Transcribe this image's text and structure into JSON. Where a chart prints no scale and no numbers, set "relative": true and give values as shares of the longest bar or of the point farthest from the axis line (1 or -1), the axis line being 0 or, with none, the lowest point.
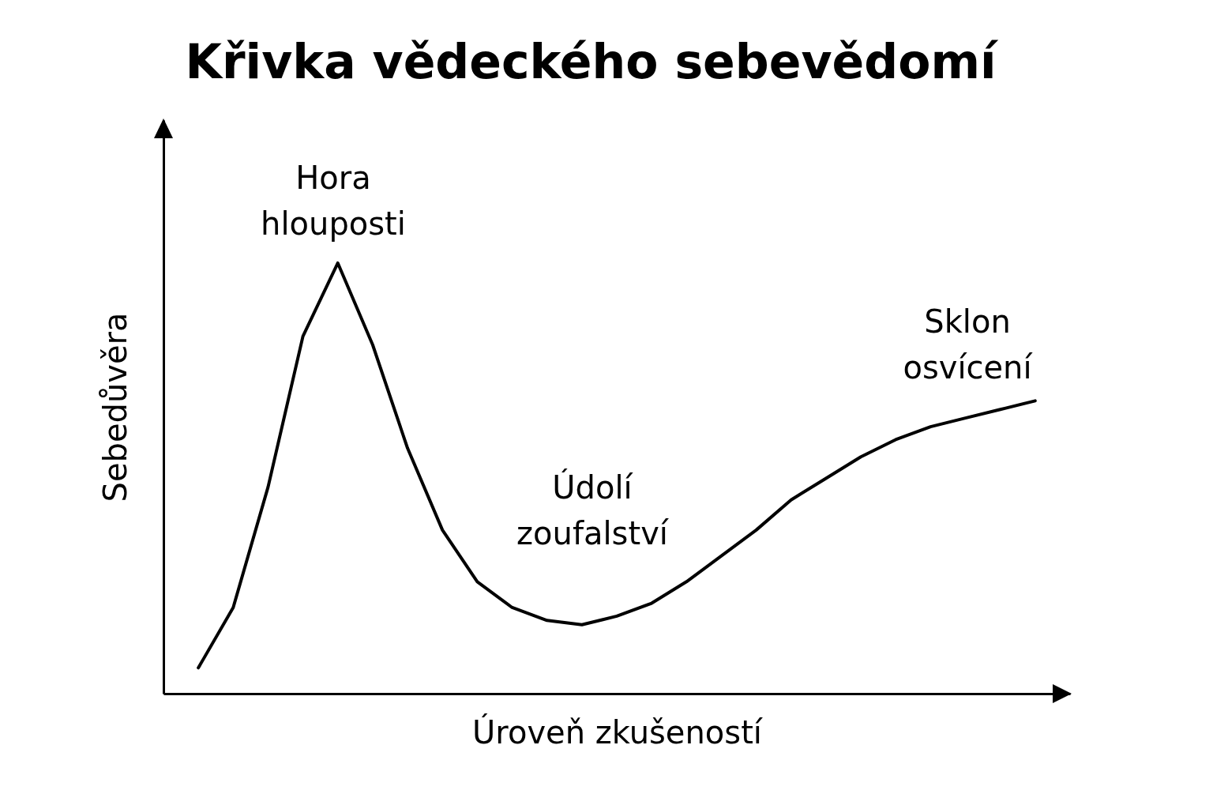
{
  "chart_data": {
    "type": "line",
    "title": "Křivka vědeckého sebevědomí",
    "xlabel": "Úroveň zkušeností",
    "ylabel": "Sebedůvěra",
    "relative": true,
    "tick_labels": false,
    "categories": [
      null,
      null,
      null,
      null,
      null,
      null,
      null,
      null,
      null,
      null,
      null,
      null,
      null,
      null,
      null,
      null,
      null,
      null,
      null,
      null,
      null,
      null,
      null,
      null,
      null
    ],
    "series": [
      {
        "color": "#000000",
        "values": [
          0.06,
          0.2,
          0.48,
          0.83,
          1.0,
          0.81,
          0.57,
          0.38,
          0.26,
          0.2,
          0.17,
          0.16,
          0.18,
          0.21,
          0.26,
          0.32,
          0.38,
          0.45,
          0.5,
          0.55,
          0.59,
          0.62,
          0.64,
          0.66,
          0.68
        ]
      }
    ],
    "annotations": [
      "Hora hlouposti",
      "Údolí zoufalství",
      "Sklon osvícení"
    ]
  }
}
